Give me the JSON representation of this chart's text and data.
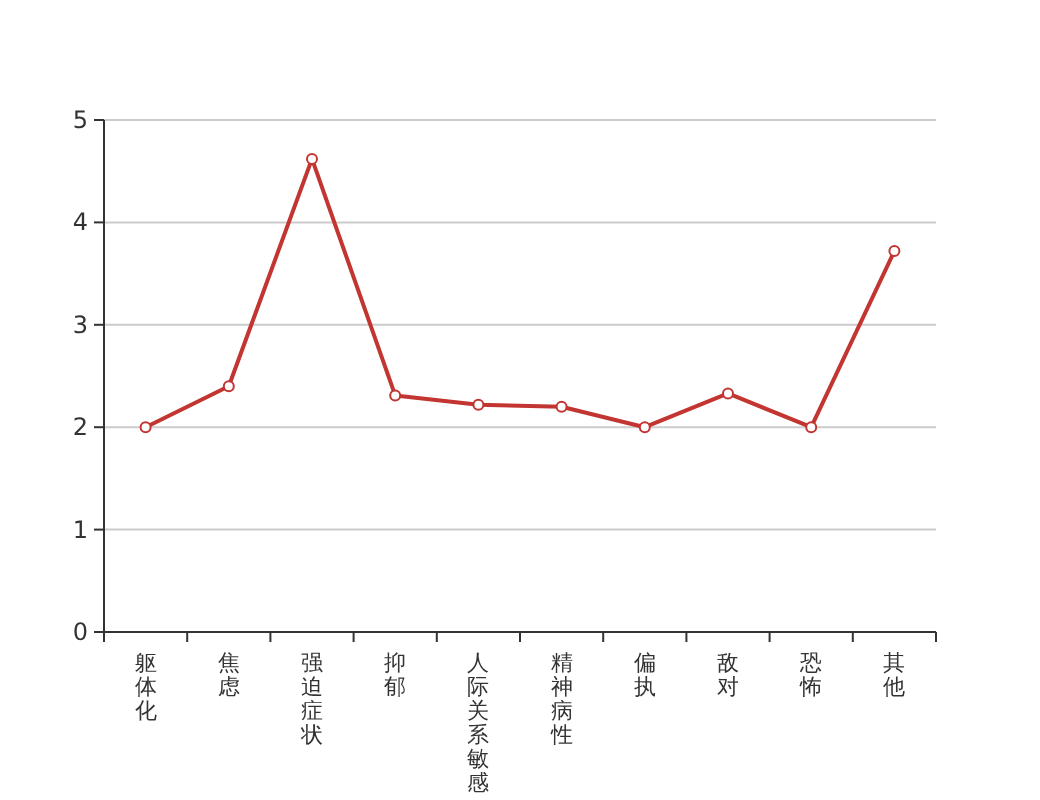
{
  "chart_data": {
    "type": "line",
    "categories": [
      "躯体化",
      "焦虑",
      "强迫症状",
      "抑郁",
      "人际关系敏感",
      "精神病性",
      "偏执",
      "敌对",
      "恐怖",
      "其他"
    ],
    "series": [
      {
        "color": "#c23531",
        "values": [
          2.0,
          2.4,
          4.62,
          2.31,
          2.22,
          2.2,
          2.0,
          2.33,
          2.0,
          3.72
        ]
      }
    ],
    "ylim": [
      0,
      5
    ],
    "yticks": [
      0,
      1,
      2,
      3,
      4,
      5
    ],
    "grid": "y",
    "marker": "circle",
    "line_style": "solid"
  }
}
